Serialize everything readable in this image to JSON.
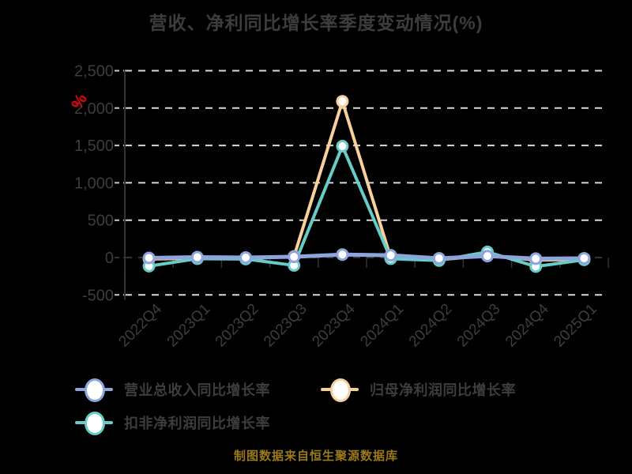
{
  "title": "营收、净利同比增长率季度变动情况(%)",
  "footer": "制图数据来自恒生聚源数据库",
  "y_axis": {
    "unit_label": "%",
    "unit_color": "#e60012",
    "tick_values": [
      2500,
      2000,
      1500,
      1000,
      500,
      0,
      -500
    ],
    "tick_labels": [
      "2,500",
      "2,000",
      "1,500",
      "1,000",
      "500",
      "0",
      "-500"
    ]
  },
  "colors": {
    "background": "#000000",
    "grid_line": "#d9d9d9",
    "zero_line": "#333333",
    "axis_line": "#333333",
    "tick": "#c9c9c9",
    "axis_text": "#3d3d3d",
    "marker_fill": "#ffffff",
    "footer_text": "#9a7b17"
  },
  "chart_data": {
    "type": "line",
    "title": "营收、净利同比增长率季度变动情况(%)",
    "xlabel": "",
    "ylabel": "%",
    "ylim": [
      -500,
      2500
    ],
    "grid": "horizontal dashed",
    "legend_position": "bottom",
    "marker_style": "circle white fill with colored ring",
    "categories": [
      "2022Q4",
      "2023Q1",
      "2023Q2",
      "2023Q3",
      "2023Q4",
      "2024Q1",
      "2024Q2",
      "2024Q3",
      "2024Q4",
      "2025Q1"
    ],
    "series": [
      {
        "name": "营业总收入同比增长率",
        "color": "#8da4dd",
        "values": [
          -5,
          5,
          0,
          10,
          40,
          30,
          -10,
          20,
          -15,
          -10
        ]
      },
      {
        "name": "归母净利润同比增长率",
        "color": "#f8d09a",
        "values": [
          -20,
          -10,
          -15,
          15,
          2090,
          -5,
          -30,
          30,
          -35,
          -25
        ]
      },
      {
        "name": "扣非净利润同比增长率",
        "color": "#66ccc8",
        "values": [
          -115,
          -15,
          -20,
          -105,
          1490,
          -15,
          -40,
          75,
          -120,
          -30
        ]
      }
    ]
  }
}
